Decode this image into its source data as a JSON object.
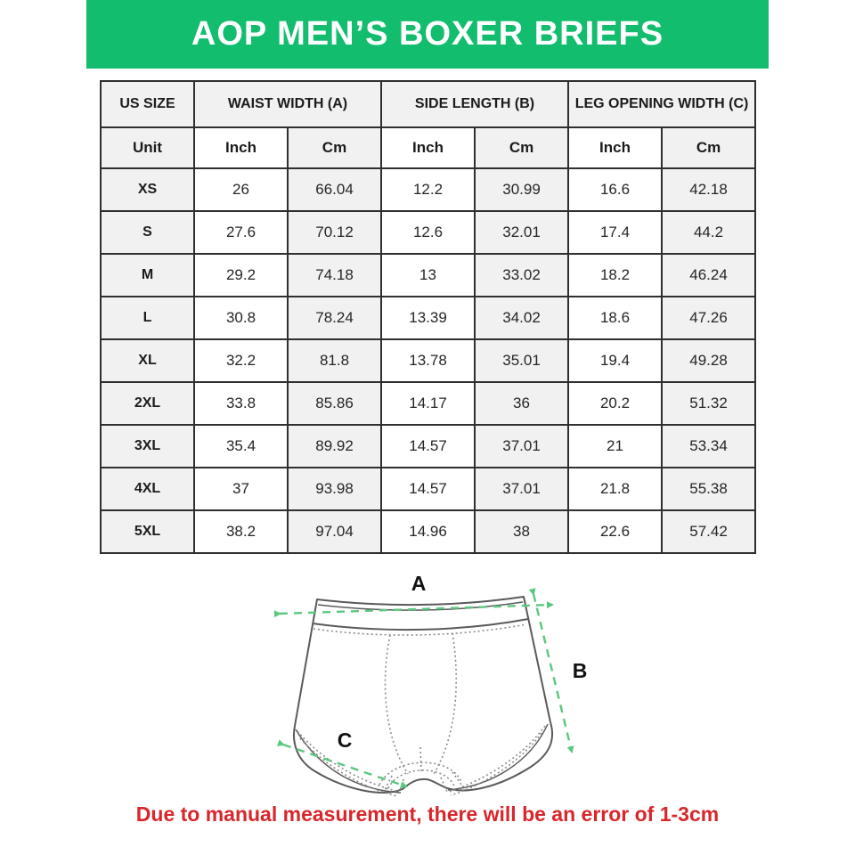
{
  "header": {
    "title": "AOP MEN’S BOXER BRIEFS"
  },
  "colors": {
    "banner_green": "#12bd6e",
    "measure_green": "#5cc77e",
    "note_red": "#d8262b",
    "cell_gray": "#f1f1f1",
    "table_border": "#2f2f2f"
  },
  "table": {
    "group_headers": [
      {
        "label": "US SIZE",
        "span": 1
      },
      {
        "label": "WAIST WIDTH (A)",
        "span": 2
      },
      {
        "label": "SIDE LENGTH (B)",
        "span": 2
      },
      {
        "label": "LEG OPENING WIDTH (C)",
        "span": 2
      }
    ],
    "unit_row": [
      "Unit",
      "Inch",
      "Cm",
      "Inch",
      "Cm",
      "Inch",
      "Cm"
    ],
    "rows": [
      [
        "XS",
        "26",
        "66.04",
        "12.2",
        "30.99",
        "16.6",
        "42.18"
      ],
      [
        "S",
        "27.6",
        "70.12",
        "12.6",
        "32.01",
        "17.4",
        "44.2"
      ],
      [
        "M",
        "29.2",
        "74.18",
        "13",
        "33.02",
        "18.2",
        "46.24"
      ],
      [
        "L",
        "30.8",
        "78.24",
        "13.39",
        "34.02",
        "18.6",
        "47.26"
      ],
      [
        "XL",
        "32.2",
        "81.8",
        "13.78",
        "35.01",
        "19.4",
        "49.28"
      ],
      [
        "2XL",
        "33.8",
        "85.86",
        "14.17",
        "36",
        "20.2",
        "51.32"
      ],
      [
        "3XL",
        "35.4",
        "89.92",
        "14.57",
        "37.01",
        "21",
        "53.34"
      ],
      [
        "4XL",
        "37",
        "93.98",
        "14.57",
        "37.01",
        "21.8",
        "55.38"
      ],
      [
        "5XL",
        "38.2",
        "97.04",
        "14.96",
        "38",
        "22.6",
        "57.42"
      ]
    ]
  },
  "diagram": {
    "label_a": "A",
    "label_b": "B",
    "label_c": "C"
  },
  "footer": {
    "note": "Due to manual measurement, there will be an error of 1-3cm"
  }
}
